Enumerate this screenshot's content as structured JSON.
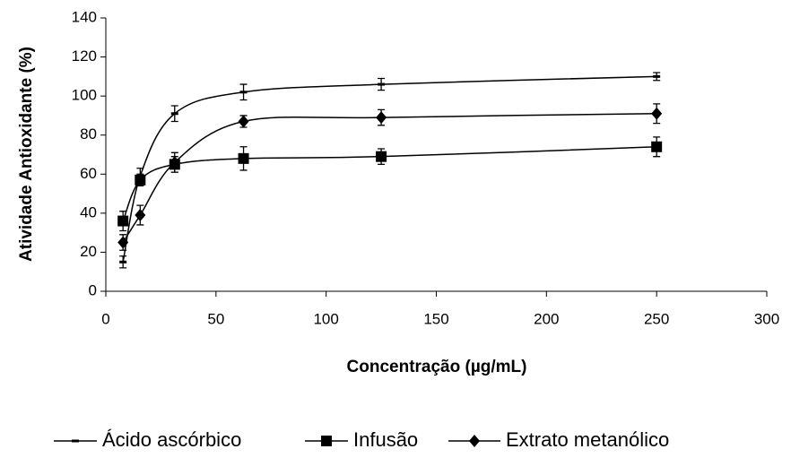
{
  "chart_data": {
    "type": "line",
    "x_label": "Concentração (µg/mL)",
    "y_label": "Atividade Antioxidante (%)",
    "x": [
      7.8,
      15.6,
      31.25,
      62.5,
      125,
      250
    ],
    "series": [
      {
        "name": "Ácido ascórbico",
        "color": "#000000",
        "marker": "dash",
        "values": [
          15,
          59,
          91,
          102,
          106,
          110
        ],
        "errors": [
          3,
          4,
          4,
          4,
          3,
          2
        ]
      },
      {
        "name": "Infusão",
        "color": "#000000",
        "marker": "square",
        "values": [
          36,
          57,
          65,
          68,
          69,
          74
        ],
        "errors": [
          5,
          3,
          4,
          6,
          4,
          5
        ]
      },
      {
        "name": "Extrato metanólico",
        "color": "#000000",
        "marker": "diamond",
        "values": [
          25,
          39,
          66,
          87,
          89,
          91
        ],
        "errors": [
          4,
          5,
          5,
          3,
          4,
          5
        ]
      }
    ],
    "xlim": [
      0,
      300
    ],
    "xticks": [
      0,
      50,
      100,
      150,
      200,
      250,
      300
    ],
    "ylim": [
      0,
      140
    ],
    "yticks": [
      0,
      20,
      40,
      60,
      80,
      100,
      120,
      140
    ],
    "grid": false,
    "smooth": true,
    "legend": "bottom"
  }
}
